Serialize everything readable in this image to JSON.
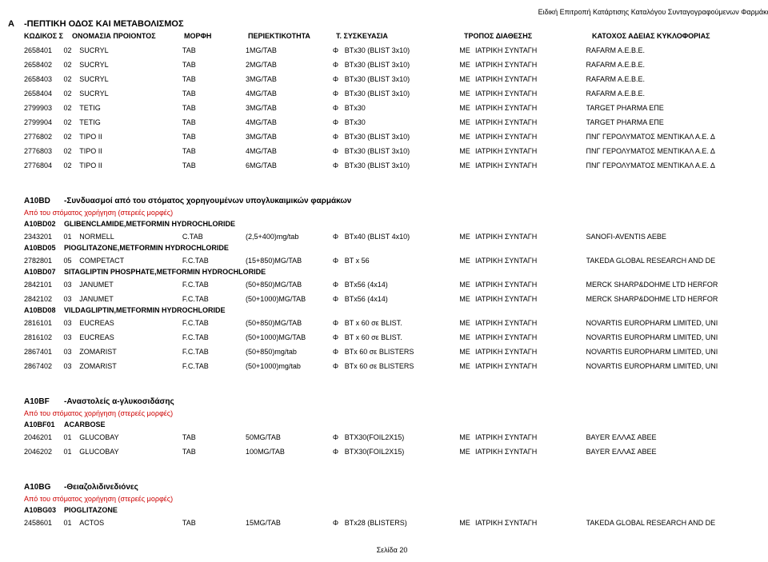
{
  "hdrRight": "Ειδική Επιτροπή Κατάρτισης Καταλόγου Συνταγογραφούμενων Φαρμάκων",
  "catCode": "A",
  "catName": "-ΠΕΠΤΙΚΗ ΟΔΟΣ ΚΑΙ ΜΕΤΑΒΟΛΙΣΜΟΣ",
  "cols": {
    "code": "ΚΩΔΙΚΟΣ Σ",
    "name": "ΟΝΟΜΑΣΙΑ ΠΡΟΙΟΝΤΟΣ",
    "form": "ΜΟΡΦΗ",
    "str": "ΠΕΡΙΕΚΤΙΚΟΤΗΤΑ",
    "pack": "Τ. ΣΥΣΚΕΥΑΣΙΑ",
    "disp": "ΤΡΟΠΟΣ ΔΙΑΘΕΣΗΣ",
    "holder": "ΚΑΤΟΧΟΣ ΑΔΕΙΑΣ ΚΥΚΛΟΦΟΡΙΑΣ"
  },
  "topRows": [
    {
      "a": "2658401",
      "b": "02",
      "c": "SUCRYL",
      "d": "TAB",
      "e": "1MG/TAB",
      "f": "Φ",
      "g": "BTx30 (BLIST 3x10)",
      "h": "ΜΕ",
      "i": "ΙΑΤΡΙΚΗ ΣΥΝΤΑΓΗ",
      "j": "RAFARM A.E.B.E."
    },
    {
      "a": "2658402",
      "b": "02",
      "c": "SUCRYL",
      "d": "TAB",
      "e": "2MG/TAB",
      "f": "Φ",
      "g": "BTx30 (BLIST 3x10)",
      "h": "ΜΕ",
      "i": "ΙΑΤΡΙΚΗ ΣΥΝΤΑΓΗ",
      "j": "RAFARM A.E.B.E."
    },
    {
      "a": "2658403",
      "b": "02",
      "c": "SUCRYL",
      "d": "TAB",
      "e": "3MG/TAB",
      "f": "Φ",
      "g": "BTx30 (BLIST 3x10)",
      "h": "ΜΕ",
      "i": "ΙΑΤΡΙΚΗ ΣΥΝΤΑΓΗ",
      "j": "RAFARM A.E.B.E."
    },
    {
      "a": "2658404",
      "b": "02",
      "c": "SUCRYL",
      "d": "TAB",
      "e": "4MG/TAB",
      "f": "Φ",
      "g": "BTx30 (BLIST 3x10)",
      "h": "ΜΕ",
      "i": "ΙΑΤΡΙΚΗ ΣΥΝΤΑΓΗ",
      "j": "RAFARM A.E.B.E."
    },
    {
      "a": "2799903",
      "b": "02",
      "c": "TETIG",
      "d": "TAB",
      "e": "3MG/TAB",
      "f": "Φ",
      "g": "BTx30",
      "h": "ΜΕ",
      "i": "ΙΑΤΡΙΚΗ ΣΥΝΤΑΓΗ",
      "j": "TARGET PHARMA ΕΠΕ"
    },
    {
      "a": "2799904",
      "b": "02",
      "c": "TETIG",
      "d": "TAB",
      "e": "4MG/TAB",
      "f": "Φ",
      "g": "BTx30",
      "h": "ΜΕ",
      "i": "ΙΑΤΡΙΚΗ ΣΥΝΤΑΓΗ",
      "j": "TARGET PHARMA ΕΠΕ"
    },
    {
      "a": "2776802",
      "b": "02",
      "c": "TIPO II",
      "d": "TAB",
      "e": "3MG/TAB",
      "f": "Φ",
      "g": "BTx30 (BLIST 3x10)",
      "h": "ΜΕ",
      "i": "ΙΑΤΡΙΚΗ ΣΥΝΤΑΓΗ",
      "j": "ΠΝΓ ΓΕΡΟΛΥΜΑΤΟΣ ΜΕΝΤΙΚΑΛ Α.Ε. Δ"
    },
    {
      "a": "2776803",
      "b": "02",
      "c": "TIPO II",
      "d": "TAB",
      "e": "4MG/TAB",
      "f": "Φ",
      "g": "BTx30 (BLIST 3x10)",
      "h": "ΜΕ",
      "i": "ΙΑΤΡΙΚΗ ΣΥΝΤΑΓΗ",
      "j": "ΠΝΓ ΓΕΡΟΛΥΜΑΤΟΣ ΜΕΝΤΙΚΑΛ Α.Ε. Δ"
    },
    {
      "a": "2776804",
      "b": "02",
      "c": "TIPO II",
      "d": "TAB",
      "e": "6MG/TAB",
      "f": "Φ",
      "g": "BTx30 (BLIST 3x10)",
      "h": "ΜΕ",
      "i": "ΙΑΤΡΙΚΗ ΣΥΝΤΑΓΗ",
      "j": "ΠΝΓ ΓΕΡΟΛΥΜΑΤΟΣ ΜΕΝΤΙΚΑΛ Α.Ε. Δ"
    }
  ],
  "g1": {
    "code": "A10BD",
    "title": "-Συνδυασμοί από του στόματος χορηγουμένων υπογλυκαιμικών φαρμάκων",
    "red": "Από του στόματος χορήγηση (στερεές μορφές)",
    "subs": [
      {
        "code": "A10BD02",
        "name": "GLIBENCLAMIDE,METFORMIN HYDROCHLORIDE",
        "rows": [
          {
            "a": "2343201",
            "b": "01",
            "c": "NORMELL",
            "d": "C.TAB",
            "e": "(2,5+400)mg/tab",
            "f": "Φ",
            "g": "BTx40 (BLIST 4x10)",
            "h": "ΜΕ",
            "i": "ΙΑΤΡΙΚΗ ΣΥΝΤΑΓΗ",
            "j": "SANOFI-AVENTIS AEBE"
          }
        ]
      },
      {
        "code": "A10BD05",
        "name": "PIOGLITAZONE,METFORMIN HYDROCHLORIDE",
        "rows": [
          {
            "a": "2782801",
            "b": "05",
            "c": "COMPETACT",
            "d": "F.C.TAB",
            "e": "(15+850)MG/TAB",
            "f": "Φ",
            "g": "BT x 56",
            "h": "ΜΕ",
            "i": "ΙΑΤΡΙΚΗ ΣΥΝΤΑΓΗ",
            "j": "TAKEDA GLOBAL RESEARCH AND DE"
          }
        ]
      },
      {
        "code": "A10BD07",
        "name": "SITAGLIPTIN PHOSPHATE,METFORMIN HYDROCHLORIDE",
        "rows": [
          {
            "a": "2842101",
            "b": "03",
            "c": "JANUMET",
            "d": "F.C.TAB",
            "e": "(50+850)MG/TAB",
            "f": "Φ",
            "g": "BTx56 (4x14)",
            "h": "ΜΕ",
            "i": "ΙΑΤΡΙΚΗ ΣΥΝΤΑΓΗ",
            "j": "MERCK SHARP&DOHME LTD HERFOR"
          },
          {
            "a": "2842102",
            "b": "03",
            "c": "JANUMET",
            "d": "F.C.TAB",
            "e": "(50+1000)MG/TAB",
            "f": "Φ",
            "g": "BTx56 (4x14)",
            "h": "ΜΕ",
            "i": "ΙΑΤΡΙΚΗ ΣΥΝΤΑΓΗ",
            "j": "MERCK SHARP&DOHME LTD HERFOR"
          }
        ]
      },
      {
        "code": "A10BD08",
        "name": "VILDAGLIPTIN,METFORMIN HYDROCHLORIDE",
        "rows": [
          {
            "a": "2816101",
            "b": "03",
            "c": "EUCREAS",
            "d": "F.C.TAB",
            "e": "(50+850)MG/TAB",
            "f": "Φ",
            "g": "BT x  60  σε BLIST.",
            "h": "ΜΕ",
            "i": "ΙΑΤΡΙΚΗ ΣΥΝΤΑΓΗ",
            "j": "NOVARTIS EUROPHARM LIMITED, UNI"
          },
          {
            "a": "2816102",
            "b": "03",
            "c": "EUCREAS",
            "d": "F.C.TAB",
            "e": "(50+1000)MG/TAB",
            "f": "Φ",
            "g": "BT x  60 σε BLIST.",
            "h": "ΜΕ",
            "i": "ΙΑΤΡΙΚΗ ΣΥΝΤΑΓΗ",
            "j": "NOVARTIS EUROPHARM LIMITED, UNI"
          },
          {
            "a": "2867401",
            "b": "03",
            "c": "ZOMARIST",
            "d": "F.C.TAB",
            "e": "(50+850)mg/tab",
            "f": "Φ",
            "g": "BTx 60 σε BLISTERS",
            "h": "ΜΕ",
            "i": "ΙΑΤΡΙΚΗ ΣΥΝΤΑΓΗ",
            "j": "NOVARTIS EUROPHARM LIMITED, UNI"
          },
          {
            "a": "2867402",
            "b": "03",
            "c": "ZOMARIST",
            "d": "F.C.TAB",
            "e": "(50+1000)mg/tab",
            "f": "Φ",
            "g": "BTx 60 σε BLISTERS",
            "h": "ΜΕ",
            "i": "ΙΑΤΡΙΚΗ ΣΥΝΤΑΓΗ",
            "j": "NOVARTIS EUROPHARM LIMITED, UNI"
          }
        ]
      }
    ]
  },
  "g2": {
    "code": "A10BF",
    "title": "-Αναστολείς α-γλυκοσιδάσης",
    "red": "Από του στόματος χορήγηση (στερεές μορφές)",
    "subs": [
      {
        "code": "A10BF01",
        "name": "ACARBOSE",
        "rows": [
          {
            "a": "2046201",
            "b": "01",
            "c": "GLUCOBAY",
            "d": "TAB",
            "e": "50MG/TAB",
            "f": "Φ",
            "g": "BTX30(FOIL2X15)",
            "h": "ΜΕ",
            "i": "ΙΑΤΡΙΚΗ ΣΥΝΤΑΓΗ",
            "j": "BAYER ΕΛΛΑΣ ΑΒΕΕ"
          },
          {
            "a": "2046202",
            "b": "01",
            "c": "GLUCOBAY",
            "d": "TAB",
            "e": "100MG/TAB",
            "f": "Φ",
            "g": "BTX30(FOIL2X15)",
            "h": "ΜΕ",
            "i": "ΙΑΤΡΙΚΗ ΣΥΝΤΑΓΗ",
            "j": "BAYER ΕΛΛΑΣ ΑΒΕΕ"
          }
        ]
      }
    ]
  },
  "g3": {
    "code": "A10BG",
    "title": "-Θειαζολιδινεδιόνες",
    "red": "Από του στόματος χορήγηση (στερεές μορφές)",
    "subs": [
      {
        "code": "A10BG03",
        "name": "PIOGLITAZONE",
        "rows": [
          {
            "a": "2458601",
            "b": "01",
            "c": "ACTOS",
            "d": "TAB",
            "e": "15MG/TAB",
            "f": "Φ",
            "g": "BTx28 (BLISTERS)",
            "h": "ΜΕ",
            "i": "ΙΑΤΡΙΚΗ ΣΥΝΤΑΓΗ",
            "j": "TAKEDA GLOBAL RESEARCH AND DE"
          }
        ]
      }
    ]
  },
  "footer": "Σελίδα 20"
}
